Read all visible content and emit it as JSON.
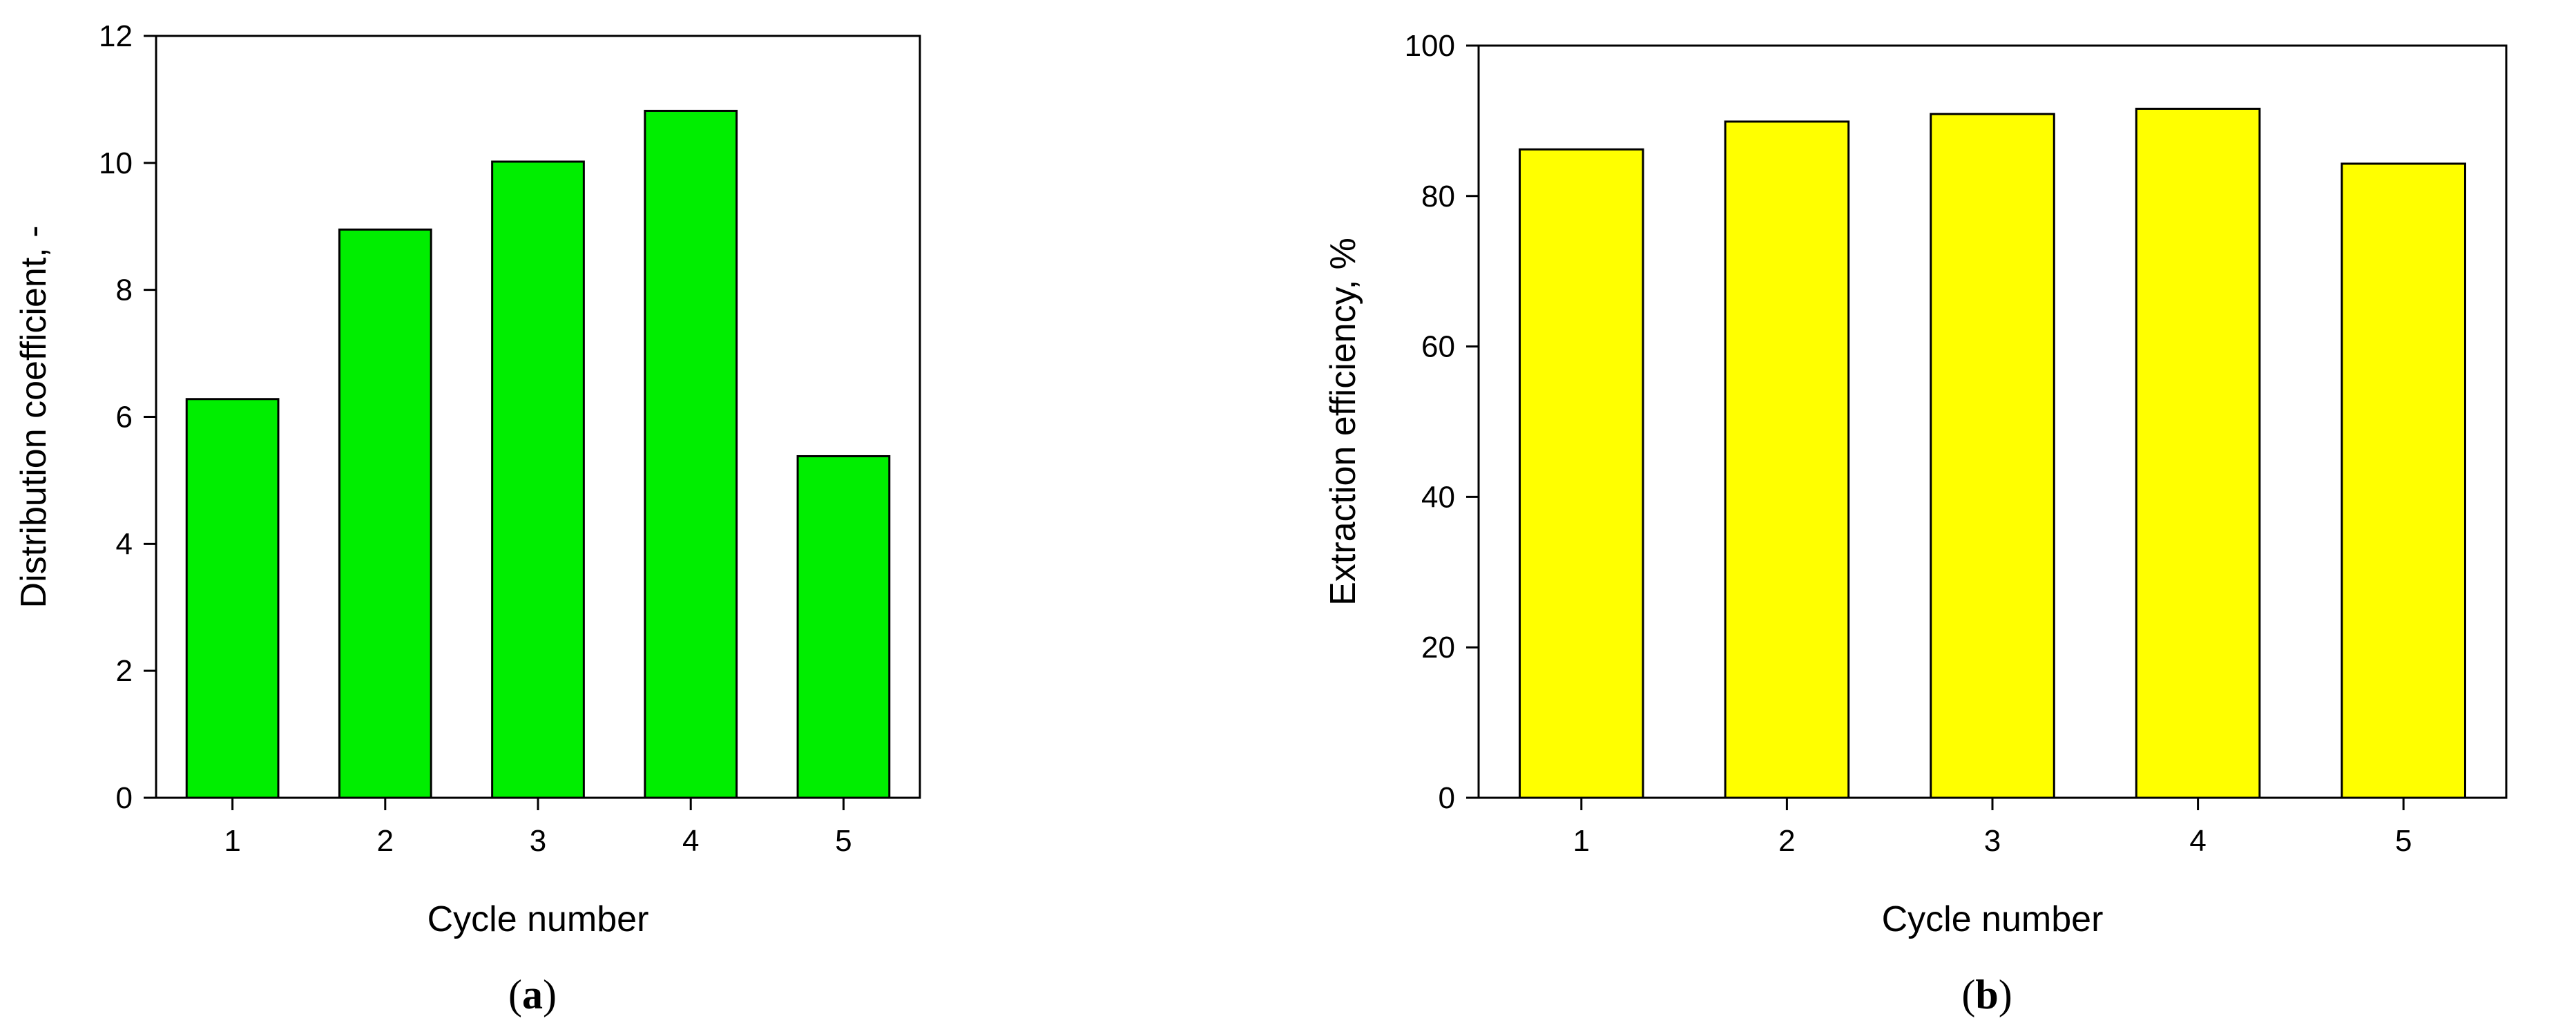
{
  "chart_data": [
    {
      "type": "bar",
      "panel_label": "(a)",
      "xlabel": "Cycle number",
      "ylabel": "Distribution coefficient, -",
      "categories": [
        "1",
        "2",
        "3",
        "4",
        "5"
      ],
      "values": [
        6.28,
        8.95,
        10.02,
        10.82,
        5.38
      ],
      "ylim": [
        0,
        12
      ],
      "yticks": [
        0,
        2,
        4,
        6,
        8,
        10,
        12
      ],
      "bar_color": "#00ee00",
      "grid": false
    },
    {
      "type": "bar",
      "panel_label": "(b)",
      "xlabel": "Cycle number",
      "ylabel": "Extraction efficiency, %",
      "categories": [
        "1",
        "2",
        "3",
        "4",
        "5"
      ],
      "values": [
        86.2,
        89.9,
        90.9,
        91.6,
        84.3
      ],
      "ylim": [
        0,
        100
      ],
      "yticks": [
        0,
        20,
        40,
        60,
        80,
        100
      ],
      "bar_color": "#ffff00",
      "grid": false
    }
  ]
}
